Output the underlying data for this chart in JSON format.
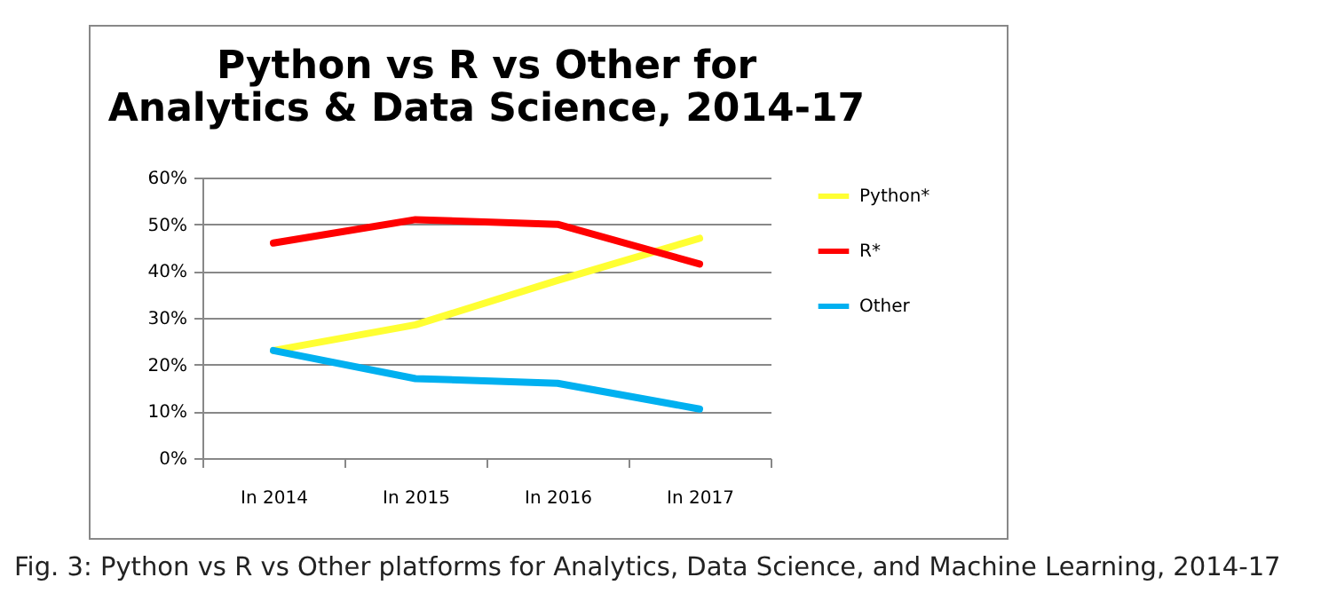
{
  "chart_data": {
    "type": "line",
    "title": "Python vs R vs Other for Analytics & Data Science, 2014-17",
    "categories": [
      "In 2014",
      "In 2015",
      "In 2016",
      "In 2017"
    ],
    "series": [
      {
        "name": "Python*",
        "color": "#ffff33",
        "values": [
          23,
          28.5,
          38,
          47
        ]
      },
      {
        "name": "R*",
        "color": "#ff0000",
        "values": [
          46,
          51,
          50,
          41.5
        ]
      },
      {
        "name": "Other",
        "color": "#00b0f0",
        "values": [
          23,
          17,
          16,
          10.5
        ]
      }
    ],
    "ylim": [
      0,
      60
    ],
    "yticks": [
      {
        "value": 0,
        "label": "0%"
      },
      {
        "value": 10,
        "label": "10%"
      },
      {
        "value": 20,
        "label": "20%"
      },
      {
        "value": 30,
        "label": "30%"
      },
      {
        "value": 40,
        "label": "40%"
      },
      {
        "value": 50,
        "label": "50%"
      },
      {
        "value": 60,
        "label": "60%"
      }
    ],
    "grid": "y",
    "legend": "right",
    "marker": "none",
    "annotations": [
      "Fig. 3: Python vs R vs Other platforms for Analytics, Data Science, and Machine Learning, 2014-17"
    ]
  }
}
